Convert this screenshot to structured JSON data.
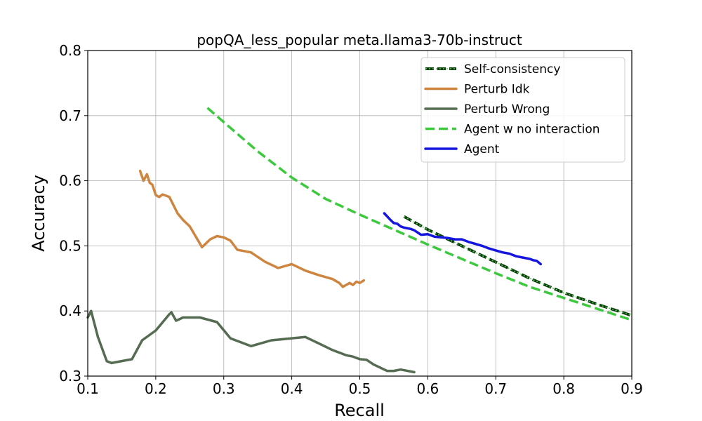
{
  "chart_data": {
    "type": "line",
    "title": "popQA_less_popular meta.llama3-70b-instruct",
    "xlabel": "Recall",
    "ylabel": "Accuracy",
    "xlim": [
      0.1,
      0.9
    ],
    "ylim": [
      0.3,
      0.8
    ],
    "xticks": [
      "0.1",
      "0.2",
      "0.3",
      "0.4",
      "0.5",
      "0.6",
      "0.7",
      "0.8",
      "0.9"
    ],
    "yticks": [
      "0.3",
      "0.4",
      "0.5",
      "0.6",
      "0.7",
      "0.8"
    ],
    "grid": true,
    "legend_position": "top-right",
    "series": [
      {
        "name": "Self-consistency",
        "color": "#2e7d32",
        "style": "dashed-dotted",
        "x": [
          0.565,
          0.6,
          0.65,
          0.7,
          0.75,
          0.8,
          0.85,
          0.9
        ],
        "y": [
          0.545,
          0.525,
          0.5,
          0.475,
          0.45,
          0.428,
          0.41,
          0.393
        ]
      },
      {
        "name": "Perturb Idk",
        "color": "#cd853f",
        "style": "solid",
        "x": [
          0.177,
          0.182,
          0.187,
          0.191,
          0.195,
          0.2,
          0.205,
          0.21,
          0.215,
          0.22,
          0.232,
          0.24,
          0.25,
          0.268,
          0.28,
          0.29,
          0.3,
          0.31,
          0.32,
          0.34,
          0.36,
          0.38,
          0.39,
          0.4,
          0.42,
          0.44,
          0.46,
          0.47,
          0.475,
          0.48,
          0.485,
          0.49,
          0.495,
          0.5,
          0.506
        ],
        "y": [
          0.615,
          0.6,
          0.61,
          0.597,
          0.594,
          0.578,
          0.575,
          0.579,
          0.577,
          0.575,
          0.55,
          0.54,
          0.53,
          0.498,
          0.51,
          0.515,
          0.513,
          0.508,
          0.494,
          0.49,
          0.476,
          0.466,
          0.469,
          0.472,
          0.462,
          0.455,
          0.449,
          0.443,
          0.437,
          0.44,
          0.443,
          0.44,
          0.445,
          0.443,
          0.447
        ]
      },
      {
        "name": "Perturb Wrong",
        "color": "#556b52",
        "style": "solid",
        "x": [
          0.1,
          0.105,
          0.115,
          0.128,
          0.135,
          0.165,
          0.18,
          0.2,
          0.22,
          0.223,
          0.23,
          0.24,
          0.265,
          0.29,
          0.31,
          0.34,
          0.37,
          0.42,
          0.44,
          0.46,
          0.48,
          0.49,
          0.5,
          0.51,
          0.52,
          0.54,
          0.55,
          0.56,
          0.58
        ],
        "y": [
          0.39,
          0.4,
          0.36,
          0.323,
          0.32,
          0.326,
          0.355,
          0.37,
          0.395,
          0.398,
          0.385,
          0.39,
          0.39,
          0.383,
          0.358,
          0.346,
          0.355,
          0.36,
          0.35,
          0.34,
          0.332,
          0.33,
          0.326,
          0.325,
          0.318,
          0.308,
          0.308,
          0.31,
          0.306
        ]
      },
      {
        "name": "Agent w no interaction",
        "color": "#3dc93d",
        "style": "dashed",
        "x": [
          0.276,
          0.3,
          0.35,
          0.4,
          0.45,
          0.5,
          0.55,
          0.6,
          0.65,
          0.7,
          0.75,
          0.8,
          0.85,
          0.9
        ],
        "y": [
          0.712,
          0.69,
          0.645,
          0.605,
          0.572,
          0.548,
          0.525,
          0.502,
          0.48,
          0.458,
          0.437,
          0.42,
          0.403,
          0.386
        ]
      },
      {
        "name": "Agent",
        "color": "#1515e0",
        "style": "solid",
        "x": [
          0.536,
          0.545,
          0.55,
          0.555,
          0.56,
          0.565,
          0.575,
          0.58,
          0.59,
          0.6,
          0.61,
          0.62,
          0.63,
          0.64,
          0.65,
          0.66,
          0.67,
          0.68,
          0.69,
          0.7,
          0.71,
          0.72,
          0.725,
          0.73,
          0.74,
          0.75,
          0.755,
          0.76,
          0.766
        ],
        "y": [
          0.55,
          0.54,
          0.535,
          0.534,
          0.53,
          0.528,
          0.526,
          0.524,
          0.517,
          0.518,
          0.514,
          0.513,
          0.512,
          0.51,
          0.51,
          0.506,
          0.503,
          0.5,
          0.496,
          0.493,
          0.49,
          0.488,
          0.486,
          0.484,
          0.482,
          0.48,
          0.478,
          0.477,
          0.472
        ]
      }
    ]
  }
}
